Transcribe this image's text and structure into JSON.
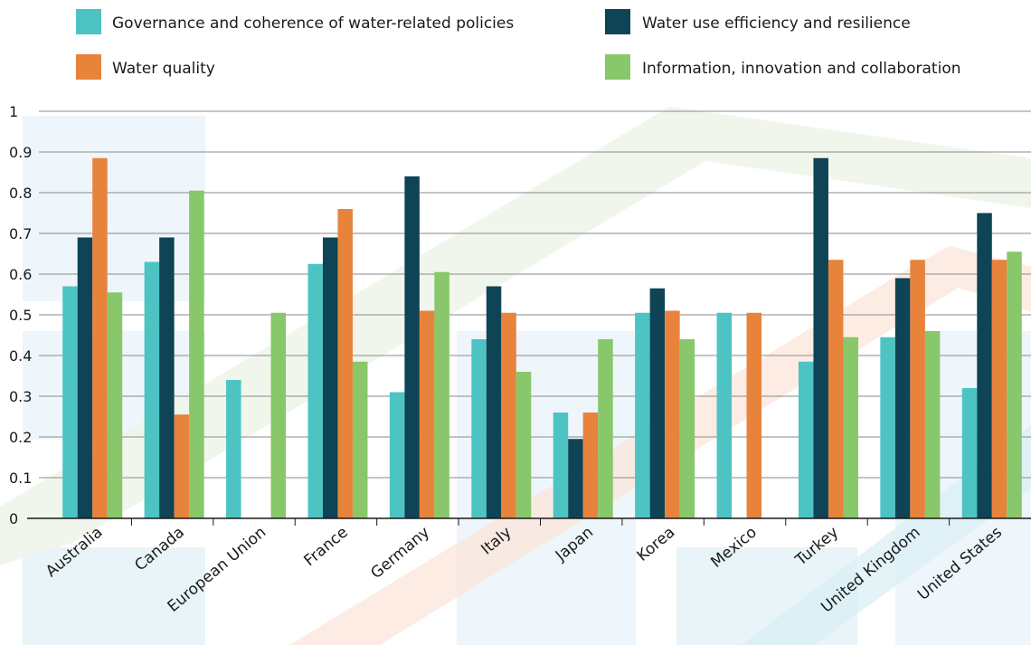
{
  "chart_data": {
    "type": "bar",
    "categories": [
      "Australia",
      "Canada",
      "European Union",
      "France",
      "Germany",
      "Italy",
      "Japan",
      "Korea",
      "Mexico",
      "Turkey",
      "United Kingdom",
      "United States"
    ],
    "series": [
      {
        "name": "Governance and coherence of water-related policies",
        "color": "#4dc3c3",
        "values": [
          0.57,
          0.63,
          0.34,
          0.625,
          0.31,
          0.44,
          0.26,
          0.505,
          0.505,
          0.385,
          0.445,
          0.32
        ]
      },
      {
        "name": "Water use efficiency and resilience",
        "color": "#0e4455",
        "values": [
          0.69,
          0.69,
          null,
          0.69,
          0.84,
          0.57,
          0.195,
          0.565,
          null,
          0.885,
          0.59,
          0.75
        ]
      },
      {
        "name": "Water quality",
        "color": "#e8833c",
        "values": [
          0.885,
          0.255,
          null,
          0.76,
          0.51,
          0.505,
          0.26,
          0.51,
          0.505,
          0.635,
          0.635,
          0.635
        ]
      },
      {
        "name": "Information, innovation and collaboration",
        "color": "#88c76a",
        "values": [
          0.555,
          0.805,
          0.505,
          0.385,
          0.605,
          0.36,
          0.44,
          0.44,
          null,
          0.445,
          0.46,
          0.655
        ]
      }
    ],
    "ylim": [
      0,
      1
    ],
    "yticks": [
      "0",
      "0.1",
      "0.2",
      "0.3",
      "0.4",
      "0.5",
      "0.6",
      "0.7",
      "0.8",
      "0.9",
      "1"
    ],
    "xlabel": "",
    "ylabel": "",
    "title": "",
    "grid": true,
    "legend_position": "top"
  }
}
